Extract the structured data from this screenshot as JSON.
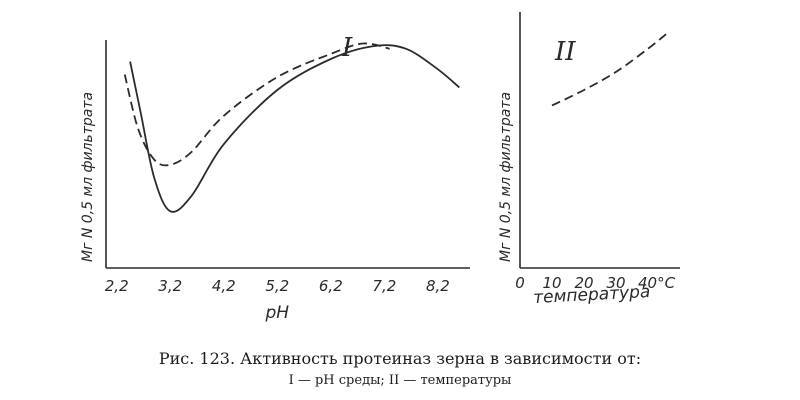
{
  "chart_data": [
    {
      "type": "line",
      "panel_label": "I",
      "title": "",
      "xlabel": "pH",
      "ylabel": "Мг N 0,5 мл фильтрата",
      "x_tick_labels": [
        "2,2",
        "3,2",
        "4,2",
        "5,2",
        "6,2",
        "7,2",
        "8,2"
      ],
      "xlim": [
        2.0,
        8.8
      ],
      "ylim": [
        0,
        10
      ],
      "grid": false,
      "series": [
        {
          "style": "solid",
          "x": [
            2.45,
            2.65,
            2.9,
            3.2,
            3.6,
            4.2,
            5.2,
            6.2,
            7.0,
            7.6,
            8.2,
            8.6
          ],
          "y": [
            8.0,
            6.0,
            3.5,
            2.2,
            2.8,
            4.8,
            6.9,
            8.1,
            8.6,
            8.5,
            7.7,
            7.0
          ]
        },
        {
          "style": "dashed",
          "x": [
            2.35,
            2.6,
            2.9,
            3.2,
            3.6,
            4.2,
            5.2,
            6.2,
            6.8,
            7.3
          ],
          "y": [
            7.5,
            5.4,
            4.2,
            4.0,
            4.5,
            5.9,
            7.4,
            8.3,
            8.7,
            8.5
          ]
        }
      ]
    },
    {
      "type": "line",
      "panel_label": "II",
      "title": "",
      "xlabel": "температура",
      "ylabel": "Мг N 0,5 мл фильтрата",
      "x": [
        0,
        10,
        20,
        30,
        40
      ],
      "x_tick_labels": [
        "0",
        "10",
        "20",
        "30",
        "40°C"
      ],
      "xlim": [
        0,
        50
      ],
      "ylim": [
        0,
        10
      ],
      "grid": false,
      "series": [
        {
          "style": "dashed",
          "x": [
            10,
            20,
            30,
            40,
            46
          ],
          "y": [
            6.3,
            6.9,
            7.6,
            8.5,
            9.1
          ]
        }
      ]
    }
  ],
  "caption": {
    "line1": "Рис. 123. Активность протеиназ зерна в зависимости от:",
    "line2": "I — pH среды; II — температуры"
  }
}
